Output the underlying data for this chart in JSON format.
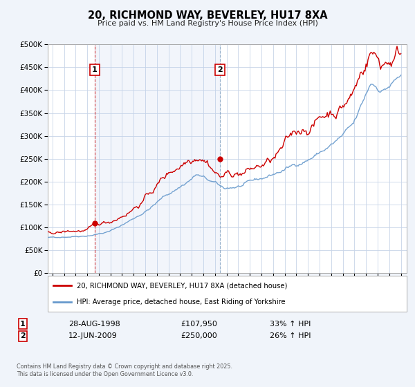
{
  "title": "20, RICHMOND WAY, BEVERLEY, HU17 8XA",
  "subtitle": "Price paid vs. HM Land Registry's House Price Index (HPI)",
  "background_color": "#f0f4fa",
  "plot_background": "#ffffff",
  "grid_color": "#c8d4e8",
  "red_color": "#cc0000",
  "blue_color": "#6699cc",
  "ylim": [
    0,
    500000
  ],
  "yticks": [
    0,
    50000,
    100000,
    150000,
    200000,
    250000,
    300000,
    350000,
    400000,
    450000,
    500000
  ],
  "ytick_labels": [
    "£0",
    "£50K",
    "£100K",
    "£150K",
    "£200K",
    "£250K",
    "£300K",
    "£350K",
    "£400K",
    "£450K",
    "£500K"
  ],
  "xlim_start": 1994.6,
  "xlim_end": 2025.5,
  "xticks": [
    1995,
    1996,
    1997,
    1998,
    1999,
    2000,
    2001,
    2002,
    2003,
    2004,
    2005,
    2006,
    2007,
    2008,
    2009,
    2010,
    2011,
    2012,
    2013,
    2014,
    2015,
    2016,
    2017,
    2018,
    2019,
    2020,
    2021,
    2022,
    2023,
    2024,
    2025
  ],
  "transaction1_x": 1998.65,
  "transaction1_y": 107950,
  "transaction1_label": "1",
  "transaction1_date": "28-AUG-1998",
  "transaction1_price": "£107,950",
  "transaction1_hpi": "33% ↑ HPI",
  "transaction2_x": 2009.45,
  "transaction2_y": 250000,
  "transaction2_label": "2",
  "transaction2_date": "12-JUN-2009",
  "transaction2_price": "£250,000",
  "transaction2_hpi": "26% ↑ HPI",
  "legend_line1": "20, RICHMOND WAY, BEVERLEY, HU17 8XA (detached house)",
  "legend_line2": "HPI: Average price, detached house, East Riding of Yorkshire",
  "footer1": "Contains HM Land Registry data © Crown copyright and database right 2025.",
  "footer2": "This data is licensed under the Open Government Licence v3.0."
}
